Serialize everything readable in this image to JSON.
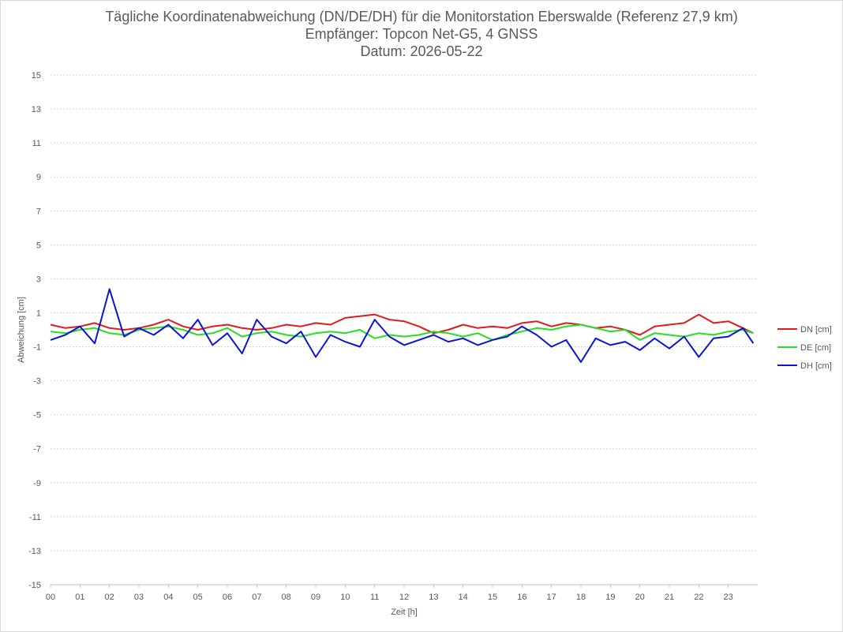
{
  "chart_data": {
    "type": "line",
    "title": "Tägliche Koordinatenabweichung (DN/DE/DH) für die Monitorstation Eberswalde (Referenz 27,9 km)",
    "subtitle": "Empfänger: Topcon Net-G5, 4 GNSS",
    "date_line": "Datum: 2026-05-22",
    "xlabel": "Zeit [h]",
    "ylabel": "Abweichung [cm]",
    "x_ticks": [
      "00",
      "01",
      "02",
      "03",
      "04",
      "05",
      "06",
      "07",
      "08",
      "09",
      "10",
      "11",
      "12",
      "13",
      "14",
      "15",
      "16",
      "17",
      "18",
      "19",
      "20",
      "21",
      "22",
      "23"
    ],
    "y_ticks": [
      15,
      13,
      11,
      9,
      7,
      5,
      3,
      1,
      -1,
      -3,
      -5,
      -7,
      -9,
      -11,
      -13,
      -15
    ],
    "ylim": [
      -15,
      15
    ],
    "xlim": [
      0,
      24
    ],
    "grid": "horizontal dotted",
    "legend_position": "right",
    "x_hours": [
      0,
      0.5,
      1,
      1.5,
      2,
      2.5,
      3,
      3.5,
      4,
      4.5,
      5,
      5.5,
      6,
      6.5,
      7,
      7.5,
      8,
      8.5,
      9,
      9.5,
      10,
      10.5,
      11,
      11.5,
      12,
      12.5,
      13,
      13.5,
      14,
      14.5,
      15,
      15.5,
      16,
      16.5,
      17,
      17.5,
      18,
      18.5,
      19,
      19.5,
      20,
      20.5,
      21,
      21.5,
      22,
      22.5,
      23,
      23.5,
      23.85
    ],
    "series": [
      {
        "name": "DN [cm]",
        "color": "#e31a1c",
        "values": [
          0.3,
          0.1,
          0.2,
          0.4,
          0.1,
          0.0,
          0.1,
          0.3,
          0.6,
          0.2,
          0.0,
          0.2,
          0.3,
          0.1,
          0.0,
          0.1,
          0.3,
          0.2,
          0.4,
          0.3,
          0.7,
          0.8,
          0.9,
          0.6,
          0.5,
          0.2,
          -0.2,
          0.0,
          0.3,
          0.1,
          0.2,
          0.1,
          0.4,
          0.5,
          0.2,
          0.4,
          0.3,
          0.1,
          0.2,
          0.0,
          -0.3,
          0.2,
          0.3,
          0.4,
          0.9,
          0.4,
          0.5,
          0.1,
          -0.2
        ]
      },
      {
        "name": "DE [cm]",
        "color": "#22e022",
        "values": [
          -0.1,
          -0.2,
          0.0,
          0.1,
          -0.2,
          -0.3,
          0.0,
          0.1,
          0.2,
          0.0,
          -0.3,
          -0.2,
          0.1,
          -0.4,
          -0.2,
          -0.1,
          -0.3,
          -0.4,
          -0.2,
          -0.1,
          -0.2,
          0.0,
          -0.5,
          -0.3,
          -0.4,
          -0.3,
          -0.1,
          -0.2,
          -0.4,
          -0.2,
          -0.6,
          -0.3,
          -0.1,
          0.1,
          0.0,
          0.2,
          0.3,
          0.1,
          -0.1,
          0.0,
          -0.6,
          -0.2,
          -0.3,
          -0.4,
          -0.2,
          -0.3,
          -0.1,
          0.0,
          -0.2
        ]
      },
      {
        "name": "DH [cm]",
        "color": "#0a14d8",
        "values": [
          -0.6,
          -0.3,
          0.2,
          -0.8,
          2.4,
          -0.4,
          0.1,
          -0.3,
          0.3,
          -0.5,
          0.6,
          -0.9,
          -0.2,
          -1.4,
          0.6,
          -0.4,
          -0.8,
          -0.1,
          -1.6,
          -0.3,
          -0.7,
          -1.0,
          0.6,
          -0.4,
          -0.9,
          -0.6,
          -0.3,
          -0.7,
          -0.5,
          -0.9,
          -0.6,
          -0.4,
          0.2,
          -0.3,
          -1.0,
          -0.6,
          -1.9,
          -0.5,
          -0.9,
          -0.7,
          -1.2,
          -0.5,
          -1.1,
          -0.4,
          -1.6,
          -0.5,
          -0.4,
          0.1,
          -0.8
        ]
      }
    ]
  }
}
